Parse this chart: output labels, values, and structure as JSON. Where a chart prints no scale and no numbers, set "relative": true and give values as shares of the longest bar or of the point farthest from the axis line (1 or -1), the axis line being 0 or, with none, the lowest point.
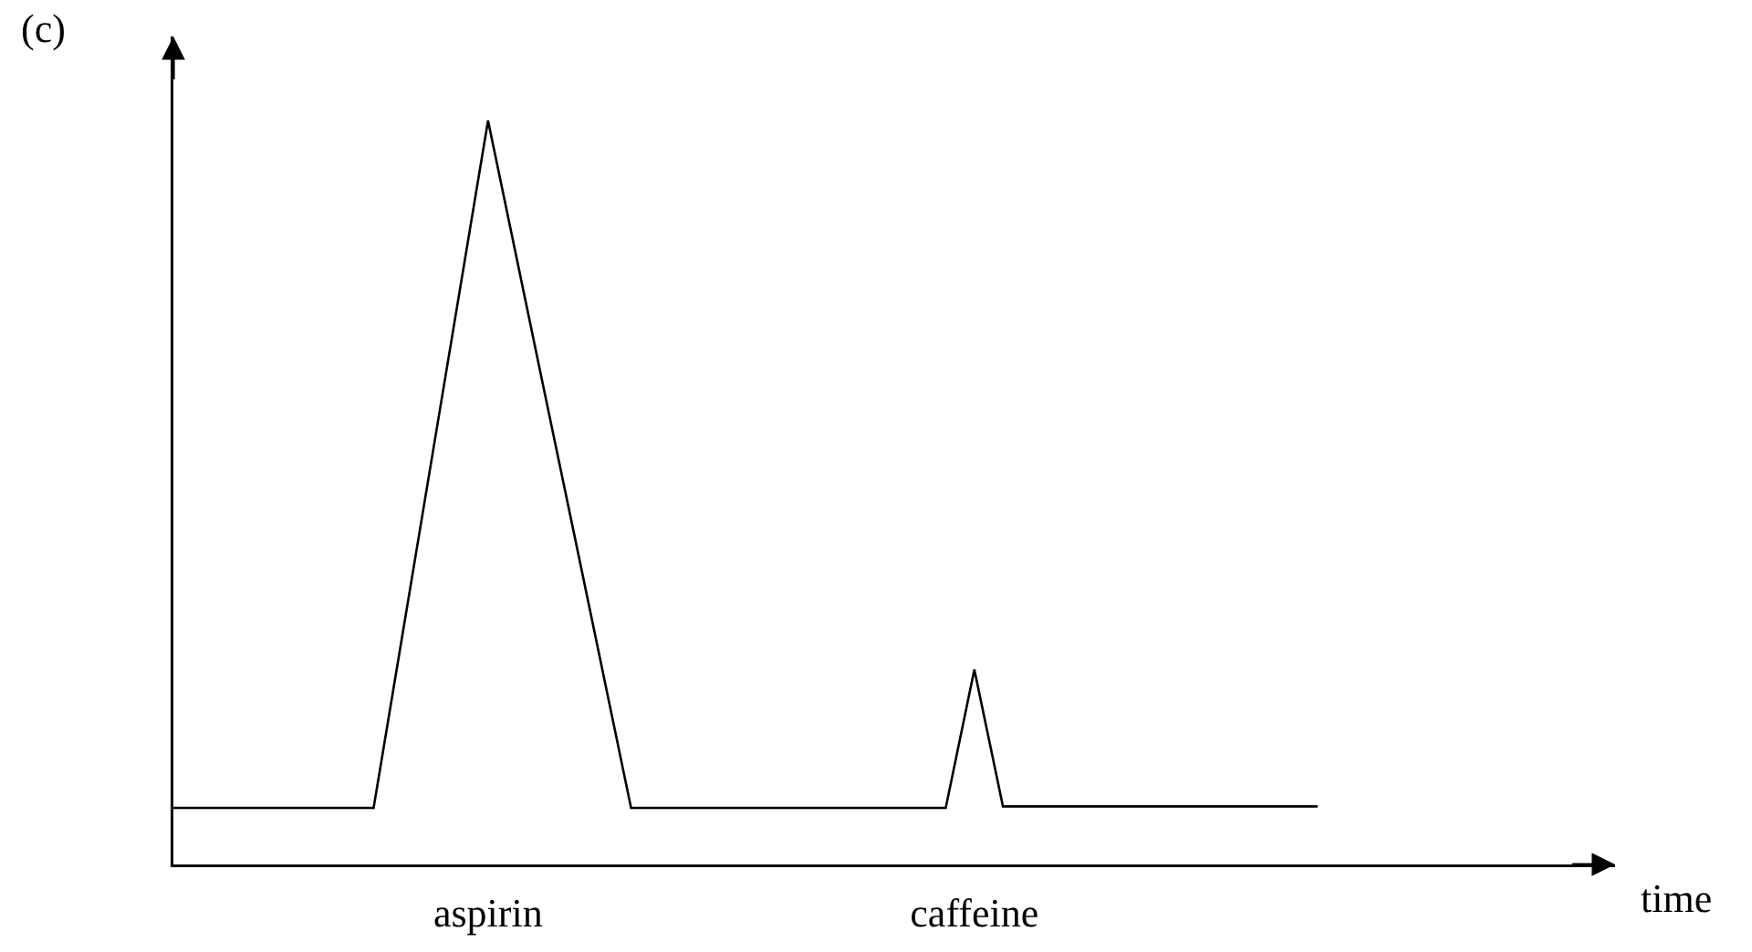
{
  "chart_data": {
    "type": "line",
    "title": "(c)",
    "annotations": [
      "time"
    ],
    "relative": true,
    "categories": [
      null,
      null,
      null,
      null,
      null,
      null,
      null,
      null,
      null,
      null,
      null,
      "aspirin",
      null,
      null,
      null,
      null,
      null,
      null,
      null,
      null,
      null,
      null,
      null,
      null,
      null,
      null,
      null,
      null,
      "caffeine",
      null,
      null,
      null,
      null,
      null,
      null,
      null,
      null,
      null,
      null,
      null,
      null
    ],
    "values": [
      0.076,
      0.076,
      0.076,
      0.076,
      0.076,
      0.076,
      0.076,
      0.076,
      0.307,
      0.538,
      0.769,
      1,
      0.815,
      0.63,
      0.446,
      0.261,
      0.076,
      0.076,
      0.076,
      0.076,
      0.076,
      0.076,
      0.076,
      0.076,
      0.076,
      0.076,
      0.076,
      0.076,
      0.262,
      0.078,
      0.078,
      0.078,
      0.078,
      0.078,
      0.078,
      0.078,
      0.078,
      0.078,
      0.078,
      0.078,
      0.078
    ],
    "color": "#000000",
    "line_style": "solid"
  }
}
